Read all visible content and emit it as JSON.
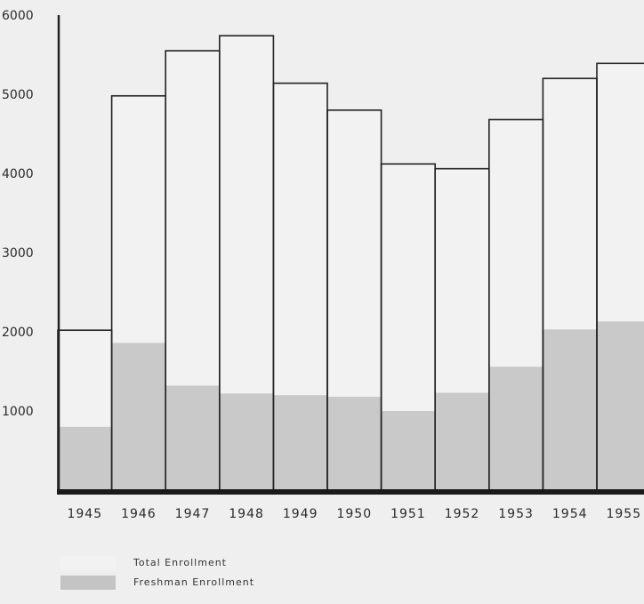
{
  "chart_data": {
    "type": "bar",
    "categories": [
      "1945",
      "1946",
      "1947",
      "1948",
      "1949",
      "1950",
      "1951",
      "1952",
      "1953",
      "1954",
      "1955"
    ],
    "series": [
      {
        "name": "Total Enrollment",
        "values": [
          2020,
          4980,
          5550,
          5740,
          5140,
          4800,
          4120,
          4060,
          4680,
          5200,
          5390
        ]
      },
      {
        "name": "Freshman Enrollment",
        "values": [
          800,
          1860,
          1320,
          1220,
          1200,
          1180,
          1000,
          1230,
          1560,
          2030,
          2130
        ]
      }
    ],
    "yticks": [
      "6000",
      "5000",
      "4000",
      "3000",
      "2000",
      "1000"
    ],
    "ylim": [
      0,
      6000
    ],
    "grid": false,
    "legend_position": "bottom-left",
    "colors": {
      "total": "#f2f2f2",
      "freshman": "#c9c9c9",
      "outline": "#222222",
      "baseline": "#1a1a1a"
    }
  }
}
